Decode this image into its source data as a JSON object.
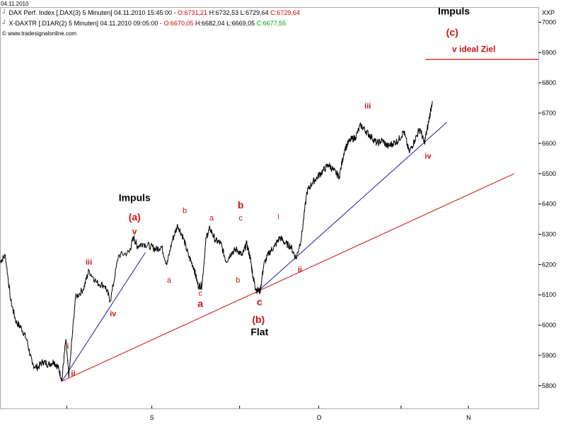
{
  "header": {
    "date": "04.11.2010",
    "line1": {
      "name": "DAX Perf. Index [.DAX(3)  5 Minuten] 04.11.2010 15:45:00 - ",
      "open": "O:6731,21",
      "high": "H:6732,53",
      "low": "L:6729,64",
      "close": "C:6729,64"
    },
    "line2": {
      "name": "X-DAXTR [.D1AR(2)  5 Minuten] 04.11.2010 09:05:00 - ",
      "open": "O:6670,05",
      "high": "H:6682,04",
      "low": "L:6669,05",
      "close": "C:6677,55"
    },
    "copyright": "© www.tradesignalonline.com"
  },
  "chart_data": {
    "type": "line",
    "title": "DAX Perf. Index",
    "y_axis_label": "XXP",
    "yticks": [
      5800,
      5900,
      6000,
      6100,
      6200,
      6300,
      6400,
      6500,
      6600,
      6700,
      6800,
      6900,
      7000
    ],
    "ylim": [
      5725,
      7050
    ],
    "x_range": [
      0,
      100
    ],
    "xticks": [
      {
        "x": 12.4,
        "label": ""
      },
      {
        "x": 28.2,
        "label": "S"
      },
      {
        "x": 44.5,
        "label": ""
      },
      {
        "x": 59.2,
        "label": "O"
      },
      {
        "x": 74.5,
        "label": ""
      },
      {
        "x": 87.0,
        "label": "N"
      }
    ],
    "price_path": [
      [
        0,
        6210
      ],
      [
        1,
        6230
      ],
      [
        2,
        6080
      ],
      [
        3,
        6010
      ],
      [
        4,
        5990
      ],
      [
        5,
        5950
      ],
      [
        6,
        5870
      ],
      [
        7,
        5860
      ],
      [
        8,
        5880
      ],
      [
        9,
        5870
      ],
      [
        10,
        5880
      ],
      [
        10.8,
        5860
      ],
      [
        11.5,
        5820
      ],
      [
        12.2,
        5950
      ],
      [
        12.8,
        5830
      ],
      [
        14,
        6090
      ],
      [
        15.5,
        6120
      ],
      [
        16.5,
        6180
      ],
      [
        18,
        6140
      ],
      [
        19.5,
        6130
      ],
      [
        20.5,
        6080
      ],
      [
        22,
        6230
      ],
      [
        24,
        6240
      ],
      [
        24.8,
        6290
      ],
      [
        25.5,
        6260
      ],
      [
        26.5,
        6270
      ],
      [
        28,
        6260
      ],
      [
        29,
        6250
      ],
      [
        30,
        6260
      ],
      [
        31,
        6200
      ],
      [
        32,
        6280
      ],
      [
        33,
        6330
      ],
      [
        34,
        6290
      ],
      [
        35,
        6230
      ],
      [
        36,
        6190
      ],
      [
        36.8,
        6130
      ],
      [
        37.5,
        6130
      ],
      [
        38.3,
        6290
      ],
      [
        39,
        6320
      ],
      [
        40,
        6280
      ],
      [
        41,
        6270
      ],
      [
        42,
        6210
      ],
      [
        43,
        6240
      ],
      [
        44,
        6250
      ],
      [
        45,
        6230
      ],
      [
        45.8,
        6270
      ],
      [
        46.5,
        6220
      ],
      [
        47,
        6160
      ],
      [
        47.5,
        6120
      ],
      [
        48.3,
        6110
      ],
      [
        49,
        6200
      ],
      [
        50,
        6240
      ],
      [
        51,
        6260
      ],
      [
        52,
        6290
      ],
      [
        53,
        6270
      ],
      [
        54,
        6260
      ],
      [
        55,
        6220
      ],
      [
        56,
        6290
      ],
      [
        57,
        6440
      ],
      [
        58,
        6470
      ],
      [
        59,
        6490
      ],
      [
        60,
        6510
      ],
      [
        61,
        6530
      ],
      [
        62,
        6510
      ],
      [
        63,
        6490
      ],
      [
        64,
        6580
      ],
      [
        65,
        6610
      ],
      [
        66,
        6620
      ],
      [
        67,
        6660
      ],
      [
        68,
        6640
      ],
      [
        69,
        6620
      ],
      [
        70,
        6600
      ],
      [
        71,
        6610
      ],
      [
        72,
        6590
      ],
      [
        73,
        6600
      ],
      [
        74,
        6610
      ],
      [
        75,
        6640
      ],
      [
        76,
        6570
      ],
      [
        77,
        6610
      ],
      [
        78,
        6650
      ],
      [
        78.8,
        6600
      ],
      [
        79.5,
        6660
      ],
      [
        80.3,
        6740
      ]
    ],
    "trendlines": [
      {
        "name": "blue-trendline-1",
        "color": "#1a1aa8",
        "from": [
          11.5,
          5815
        ],
        "to": [
          27,
          6240
        ]
      },
      {
        "name": "blue-trendline-2",
        "color": "#1a1aa8",
        "from": [
          47.5,
          6105
        ],
        "to": [
          83,
          6670
        ]
      },
      {
        "name": "red-trendline",
        "color": "#cc1111",
        "from": [
          11.5,
          5815
        ],
        "to": [
          95.5,
          6500
        ]
      }
    ],
    "target_line": {
      "color": "#cc1111",
      "from": [
        79,
        6877
      ],
      "to": [
        100,
        6877
      ]
    },
    "annotations": [
      {
        "text": "Impuls",
        "x": 25,
        "y": 6410,
        "color": "#000000",
        "size": 14,
        "bold": true
      },
      {
        "text": "(a)",
        "x": 25,
        "y": 6345,
        "color": "#cc1111",
        "size": 14,
        "bold": true
      },
      {
        "text": "v",
        "x": 25,
        "y": 6300,
        "color": "#cc1111",
        "size": 12,
        "bold": true
      },
      {
        "text": "iii",
        "x": 16.5,
        "y": 6200,
        "color": "#cc1111",
        "size": 11,
        "bold": true
      },
      {
        "text": "iv",
        "x": 21,
        "y": 6030,
        "color": "#cc1111",
        "size": 11,
        "bold": true
      },
      {
        "text": "i",
        "x": 12.6,
        "y": 5922,
        "color": "#cc1111",
        "size": 11,
        "bold": true
      },
      {
        "text": "ii",
        "x": 13.6,
        "y": 5832,
        "color": "#cc1111",
        "size": 11,
        "bold": true
      },
      {
        "text": "b",
        "x": 34.3,
        "y": 6370,
        "color": "#cc1111",
        "size": 11,
        "bold": false
      },
      {
        "text": "a",
        "x": 31.4,
        "y": 6140,
        "color": "#cc1111",
        "size": 11,
        "bold": false
      },
      {
        "text": "c",
        "x": 37.2,
        "y": 6097,
        "color": "#cc1111",
        "size": 11,
        "bold": false
      },
      {
        "text": "a",
        "x": 37.2,
        "y": 6060,
        "color": "#cc1111",
        "size": 14,
        "bold": true
      },
      {
        "text": "a",
        "x": 39.3,
        "y": 6345,
        "color": "#cc1111",
        "size": 11,
        "bold": false
      },
      {
        "text": "b",
        "x": 44.2,
        "y": 6140,
        "color": "#cc1111",
        "size": 11,
        "bold": false
      },
      {
        "text": "c",
        "x": 44.7,
        "y": 6345,
        "color": "#cc1111",
        "size": 11,
        "bold": false
      },
      {
        "text": "b",
        "x": 44.7,
        "y": 6385,
        "color": "#cc1111",
        "size": 14,
        "bold": true
      },
      {
        "text": "c",
        "x": 48.2,
        "y": 6065,
        "color": "#cc1111",
        "size": 14,
        "bold": true
      },
      {
        "text": "(b)",
        "x": 48,
        "y": 6007,
        "color": "#cc1111",
        "size": 14,
        "bold": true
      },
      {
        "text": "Flat",
        "x": 48.2,
        "y": 5967,
        "color": "#000000",
        "size": 14,
        "bold": true
      },
      {
        "text": "i",
        "x": 51.7,
        "y": 6350,
        "color": "#cc1111",
        "size": 11,
        "bold": false
      },
      {
        "text": "ii",
        "x": 55.7,
        "y": 6175,
        "color": "#cc1111",
        "size": 11,
        "bold": true
      },
      {
        "text": "iii",
        "x": 68.3,
        "y": 6715,
        "color": "#cc1111",
        "size": 11,
        "bold": true
      },
      {
        "text": "iv",
        "x": 79.5,
        "y": 6550,
        "color": "#cc1111",
        "size": 11,
        "bold": true
      },
      {
        "text": "Impuls",
        "x": 84.3,
        "y": 7025,
        "color": "#000000",
        "size": 14,
        "bold": true
      },
      {
        "text": "(c)",
        "x": 84,
        "y": 6955,
        "color": "#cc1111",
        "size": 14,
        "bold": true
      },
      {
        "text": "v ideal Ziel",
        "x": 88,
        "y": 6902,
        "color": "#cc1111",
        "size": 12,
        "bold": true
      }
    ],
    "grid": false,
    "legend": "none"
  }
}
